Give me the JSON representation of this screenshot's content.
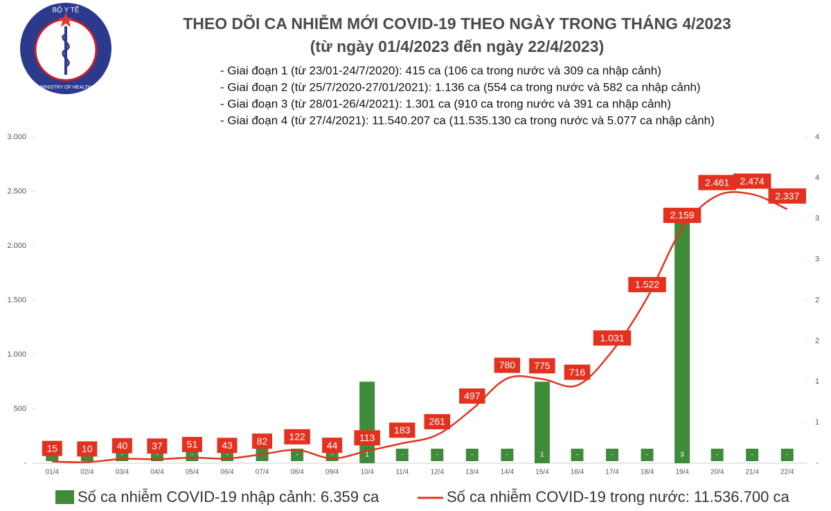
{
  "chart_data": {
    "type": "bar+line",
    "title": "THEO DÕI CA NHIỄM MỚI COVID-19 THEO NGÀY TRONG THÁNG 4/2023",
    "subtitle": "(từ ngày 01/4/2023 đến ngày 22/4/2023)",
    "annotations": [
      "- Giai đoạn 1 (từ 23/01-24/7/2020): 415 ca (106 ca trong nước và 309 ca nhập cảnh)",
      "- Giai đoạn 2 (từ 25/7/2020-27/01/2021): 1.136 ca (554 ca trong nước và 582 ca nhập cảnh)",
      "- Giai đoạn 3 (từ 28/01-26/4/2021): 1.301 ca (910 ca trong nước và 391 ca nhập cảnh)",
      "- Giai đoạn 4 (từ 27/4/2021): 11.540.207 ca (11.535.130 ca trong nước và 5.077 ca nhập cảnh)"
    ],
    "logo": {
      "top": "BỘ Y TẾ",
      "bottom": "MINISTRY OF HEALTH"
    },
    "categories": [
      "01/4",
      "02/4",
      "03/4",
      "04/4",
      "05/4",
      "06/4",
      "07/4",
      "08/4",
      "09/4",
      "10/4",
      "11/4",
      "12/4",
      "13/4",
      "14/4",
      "15/4",
      "16/4",
      "17/4",
      "18/4",
      "19/4",
      "20/4",
      "21/4",
      "22/4"
    ],
    "series": [
      {
        "name": "Số ca nhiễm COVID-19 nhập cảnh: 6.359 ca",
        "type": "bar",
        "axis": "y2",
        "color": "#3f8b3a",
        "values": [
          0,
          0,
          0,
          0,
          0,
          0,
          0,
          0,
          0,
          1,
          0,
          0,
          0,
          0,
          1,
          0,
          0,
          0,
          3,
          0,
          0,
          0
        ],
        "value_labels": [
          "-",
          "-",
          "-",
          "-",
          "-",
          "-",
          "-",
          "-",
          "-",
          "1",
          "-",
          "-",
          "-",
          "-",
          "1",
          "-",
          "-",
          "-",
          "3",
          "-",
          "-",
          "-"
        ]
      },
      {
        "name": "Số ca nhiễm COVID-19 trong nước: 11.536.700 ca",
        "type": "line",
        "color": "#e2321f",
        "values": [
          15,
          10,
          40,
          37,
          51,
          43,
          82,
          122,
          44,
          113,
          183,
          261,
          497,
          780,
          775,
          716,
          1031,
          1522,
          2159,
          2461,
          2474,
          2337
        ],
        "value_labels": [
          "15",
          "10",
          "40",
          "37",
          "51",
          "43",
          "82",
          "122",
          "44",
          "113",
          "183",
          "261",
          "497",
          "780",
          "775",
          "716",
          "1.031",
          "1.522",
          "2.159",
          "2.461",
          "2.474",
          "2.337"
        ]
      }
    ],
    "ylim": [
      0,
      3000
    ],
    "yticks": [
      {
        "value": 0,
        "label": "-"
      },
      500,
      {
        "value": 1000,
        "label": "1.000"
      },
      {
        "value": 1500,
        "label": "1.500"
      },
      {
        "value": 2000,
        "label": "2.000"
      },
      {
        "value": 2500,
        "label": "2.500"
      },
      {
        "value": 3000,
        "label": "3.000"
      }
    ],
    "y2lim": [
      0,
      4
    ],
    "y2ticks": [
      {
        "value": 0,
        "label": "-"
      },
      {
        "value": 0.5,
        "label": "1"
      },
      1,
      {
        "value": 1.5,
        "label": "2"
      },
      2,
      {
        "value": 2.5,
        "label": "3"
      },
      3,
      {
        "value": 3.5,
        "label": "4"
      },
      4
    ],
    "grid": false
  }
}
